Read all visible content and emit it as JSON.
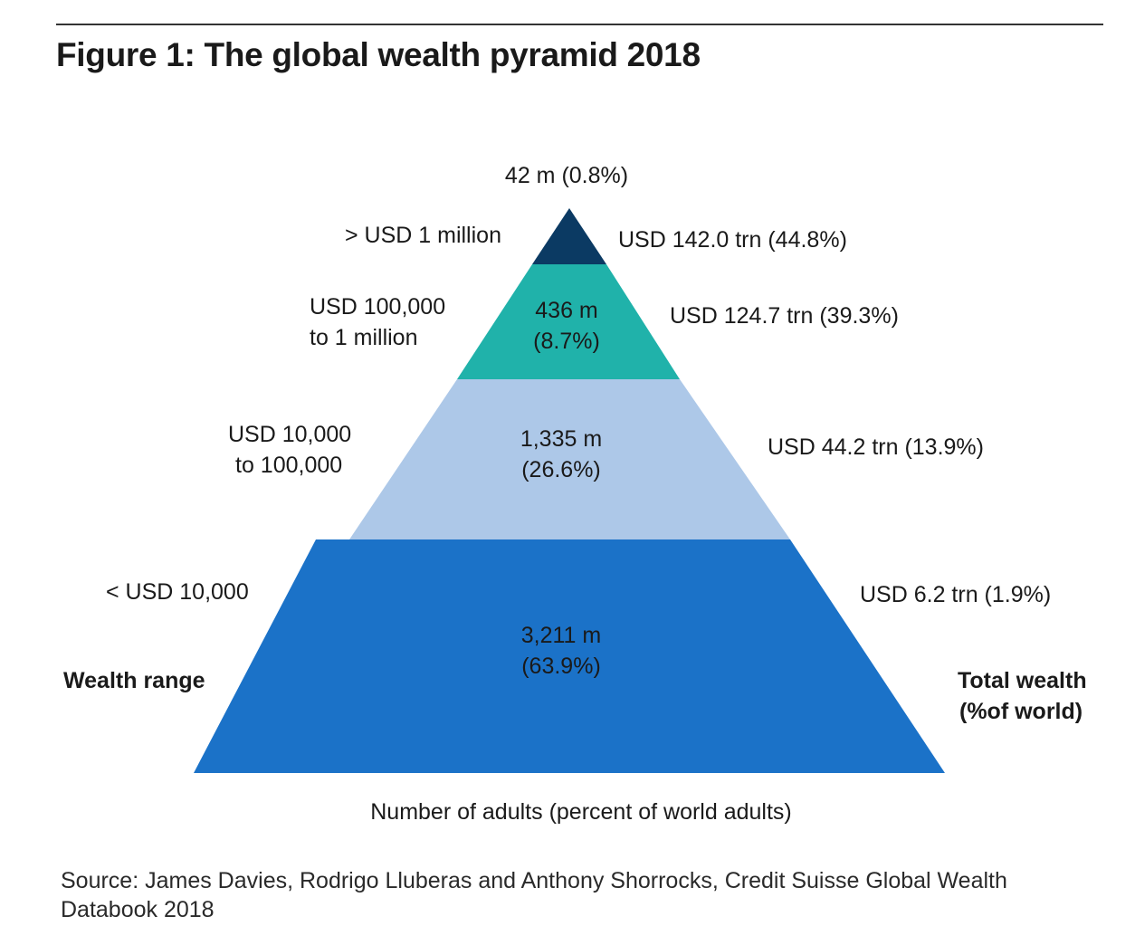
{
  "title": "Figure 1: The global wealth pyramid 2018",
  "colors": {
    "tier_top": "#0b3a63",
    "tier_2": "#20b2aa",
    "tier_3": "#adc8e8",
    "tier_base": "#1b72c8"
  },
  "chart_data": {
    "type": "pyramid",
    "title": "Figure 1: The global wealth pyramid 2018",
    "left_axis_label": "Wealth range",
    "right_axis_label": [
      "Total wealth",
      "(%of world)"
    ],
    "bottom_label": "Number of adults (percent of world adults)",
    "tiers": [
      {
        "wealth_range": [
          "> USD 1 million"
        ],
        "adults_millions": 42,
        "adults_percent": 0.8,
        "adults_label": [
          "42 m (0.8%)"
        ],
        "total_wealth_trn": 142.0,
        "wealth_percent": 44.8,
        "wealth_label": "USD 142.0 trn (44.8%)"
      },
      {
        "wealth_range": [
          "USD 100,000",
          "to 1 million"
        ],
        "adults_millions": 436,
        "adults_percent": 8.7,
        "adults_label": [
          "436 m",
          "(8.7%)"
        ],
        "total_wealth_trn": 124.7,
        "wealth_percent": 39.3,
        "wealth_label": "USD 124.7 trn (39.3%)"
      },
      {
        "wealth_range": [
          "USD 10,000",
          "to 100,000"
        ],
        "adults_millions": 1335,
        "adults_percent": 26.6,
        "adults_label": [
          "1,335 m",
          "(26.6%)"
        ],
        "total_wealth_trn": 44.2,
        "wealth_percent": 13.9,
        "wealth_label": "USD 44.2 trn (13.9%)"
      },
      {
        "wealth_range": [
          "< USD 10,000"
        ],
        "adults_millions": 3211,
        "adults_percent": 63.9,
        "adults_label": [
          "3,211 m",
          "(63.9%)"
        ],
        "total_wealth_trn": 6.2,
        "wealth_percent": 1.9,
        "wealth_label": "USD 6.2 trn (1.9%)"
      }
    ]
  },
  "source": "Source: James Davies, Rodrigo Lluberas and Anthony Shorrocks, Credit Suisse Global Wealth Databook 2018"
}
